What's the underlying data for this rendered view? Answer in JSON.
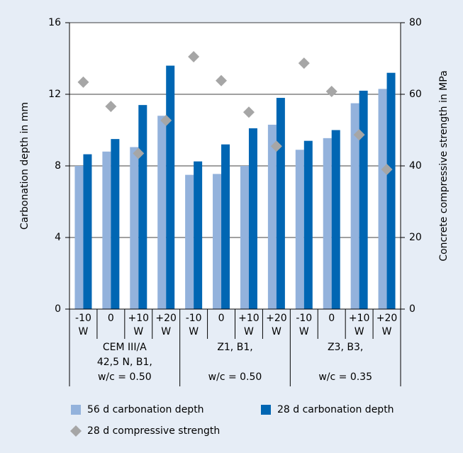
{
  "chart_data": {
    "type": "bar",
    "y_label": "Carbonation depth in mm",
    "y2_label": "Concrete compressive strength in MPa",
    "categories": [
      "-10 W",
      "0",
      "+10 W",
      "+20 W",
      "-10 W",
      "0",
      "+10 W",
      "+20 W",
      "-10 W",
      "0",
      "+10 W",
      "+20 W"
    ],
    "groups": [
      [
        "CEM III/A",
        "42,5 N, B1,",
        "w/c = 0.50"
      ],
      [
        "Z1, B1,",
        "w/c = 0.50"
      ],
      [
        "Z3, B3,",
        "w/c = 0.35"
      ]
    ],
    "series": [
      {
        "name": "56 d carbonation depth",
        "color": "#93b2dc",
        "values": [
          8.0,
          8.8,
          9.05,
          10.8,
          7.5,
          7.55,
          8.0,
          10.3,
          8.9,
          9.55,
          11.5,
          12.3
        ]
      },
      {
        "name": "28 d carbonation depth",
        "color": "#0066b3",
        "values": [
          8.65,
          9.5,
          11.4,
          13.6,
          8.25,
          9.2,
          10.1,
          11.8,
          9.4,
          10.0,
          12.2,
          13.2
        ]
      },
      {
        "name": "28 d compressive strength",
        "color": "#a6a6a6",
        "type": "scatter",
        "axis": "y2",
        "values": [
          63.4,
          56.6,
          43.5,
          52.7,
          70.5,
          63.8,
          55.0,
          45.5,
          68.7,
          60.8,
          48.7,
          39.0
        ]
      }
    ],
    "ylim": [
      0,
      16
    ],
    "yticks": [
      0,
      4,
      8,
      12,
      16
    ],
    "y2lim": [
      0,
      80
    ],
    "y2ticks": [
      0,
      20,
      40,
      60,
      80
    ],
    "grid": true
  }
}
